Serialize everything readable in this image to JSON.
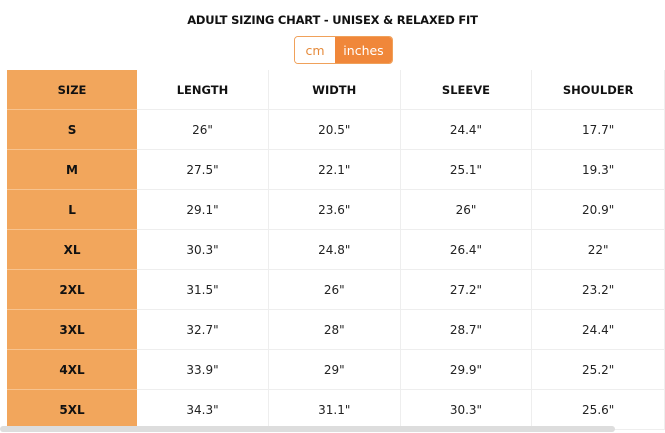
{
  "title": "ADULT SIZING CHART - UNISEX & RELAXED FIT",
  "units": {
    "options": [
      "cm",
      "inches"
    ],
    "selected": "inches"
  },
  "colors": {
    "accent": "#f0873a",
    "size_column": "#f2a65c"
  },
  "headers": [
    "SIZE",
    "LENGTH",
    "WIDTH",
    "SLEEVE",
    "SHOULDER"
  ],
  "rows": [
    [
      "S",
      "26\"",
      "20.5\"",
      "24.4\"",
      "17.7\""
    ],
    [
      "M",
      "27.5\"",
      "22.1\"",
      "25.1\"",
      "19.3\""
    ],
    [
      "L",
      "29.1\"",
      "23.6\"",
      "26\"",
      "20.9\""
    ],
    [
      "XL",
      "30.3\"",
      "24.8\"",
      "26.4\"",
      "22\""
    ],
    [
      "2XL",
      "31.5\"",
      "26\"",
      "27.2\"",
      "23.2\""
    ],
    [
      "3XL",
      "32.7\"",
      "28\"",
      "28.7\"",
      "24.4\""
    ],
    [
      "4XL",
      "33.9\"",
      "29\"",
      "29.9\"",
      "25.2\""
    ],
    [
      "5XL",
      "34.3\"",
      "31.1\"",
      "30.3\"",
      "25.6\""
    ]
  ]
}
